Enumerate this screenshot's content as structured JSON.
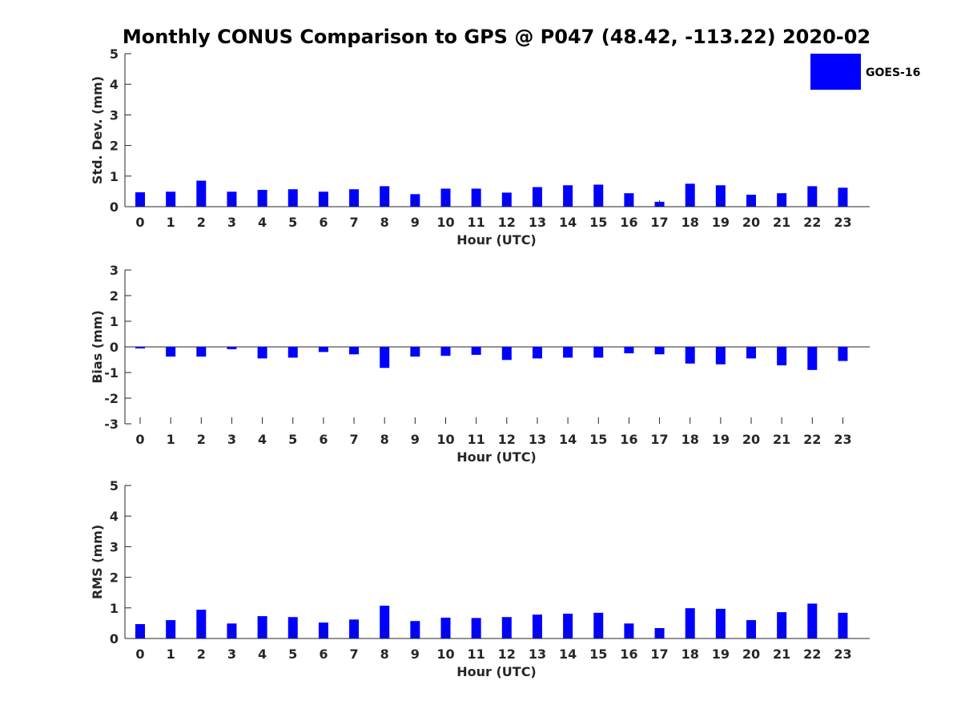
{
  "title": "Monthly CONUS Comparison to GPS @ P047 (48.42, -113.22) 2020-02",
  "legend": {
    "label": "GOES-16",
    "color": "#0000ff"
  },
  "chart_data": [
    {
      "type": "bar",
      "name": "std-dev",
      "series_name": "GOES-16",
      "color": "#0000ff",
      "xlabel": "Hour (UTC)",
      "ylabel": "Std. Dev. (mm)",
      "ylim": [
        0,
        5
      ],
      "yticks": [
        0,
        1,
        2,
        3,
        4,
        5
      ],
      "categories": [
        "0",
        "1",
        "2",
        "3",
        "4",
        "5",
        "6",
        "7",
        "8",
        "9",
        "10",
        "11",
        "12",
        "13",
        "14",
        "15",
        "16",
        "17",
        "18",
        "19",
        "20",
        "21",
        "22",
        "23"
      ],
      "values": [
        0.47,
        0.49,
        0.85,
        0.49,
        0.55,
        0.57,
        0.49,
        0.57,
        0.67,
        0.41,
        0.59,
        0.59,
        0.46,
        0.64,
        0.7,
        0.72,
        0.44,
        0.16,
        0.75,
        0.7,
        0.39,
        0.44,
        0.67,
        0.62
      ]
    },
    {
      "type": "bar",
      "name": "bias",
      "series_name": "GOES-16",
      "color": "#0000ff",
      "xlabel": "Hour (UTC)",
      "ylabel": "Bias (mm)",
      "ylim": [
        -3,
        3
      ],
      "yticks": [
        -3,
        -2,
        -1,
        0,
        1,
        2,
        3
      ],
      "categories": [
        "0",
        "1",
        "2",
        "3",
        "4",
        "5",
        "6",
        "7",
        "8",
        "9",
        "10",
        "11",
        "12",
        "13",
        "14",
        "15",
        "16",
        "17",
        "18",
        "19",
        "20",
        "21",
        "22",
        "23"
      ],
      "values": [
        -0.06,
        -0.38,
        -0.38,
        -0.09,
        -0.45,
        -0.42,
        -0.2,
        -0.29,
        -0.82,
        -0.38,
        -0.35,
        -0.31,
        -0.51,
        -0.45,
        -0.42,
        -0.42,
        -0.25,
        -0.29,
        -0.65,
        -0.68,
        -0.45,
        -0.72,
        -0.9,
        -0.55
      ]
    },
    {
      "type": "bar",
      "name": "rms",
      "series_name": "GOES-16",
      "color": "#0000ff",
      "xlabel": "Hour (UTC)",
      "ylabel": "RMS (mm)",
      "ylim": [
        0,
        5
      ],
      "yticks": [
        0,
        1,
        2,
        3,
        4,
        5
      ],
      "categories": [
        "0",
        "1",
        "2",
        "3",
        "4",
        "5",
        "6",
        "7",
        "8",
        "9",
        "10",
        "11",
        "12",
        "13",
        "14",
        "15",
        "16",
        "17",
        "18",
        "19",
        "20",
        "21",
        "22",
        "23"
      ],
      "values": [
        0.47,
        0.6,
        0.94,
        0.49,
        0.73,
        0.7,
        0.52,
        0.62,
        1.07,
        0.57,
        0.68,
        0.67,
        0.7,
        0.78,
        0.81,
        0.84,
        0.49,
        0.34,
        0.99,
        0.97,
        0.6,
        0.86,
        1.14,
        0.84
      ]
    }
  ]
}
